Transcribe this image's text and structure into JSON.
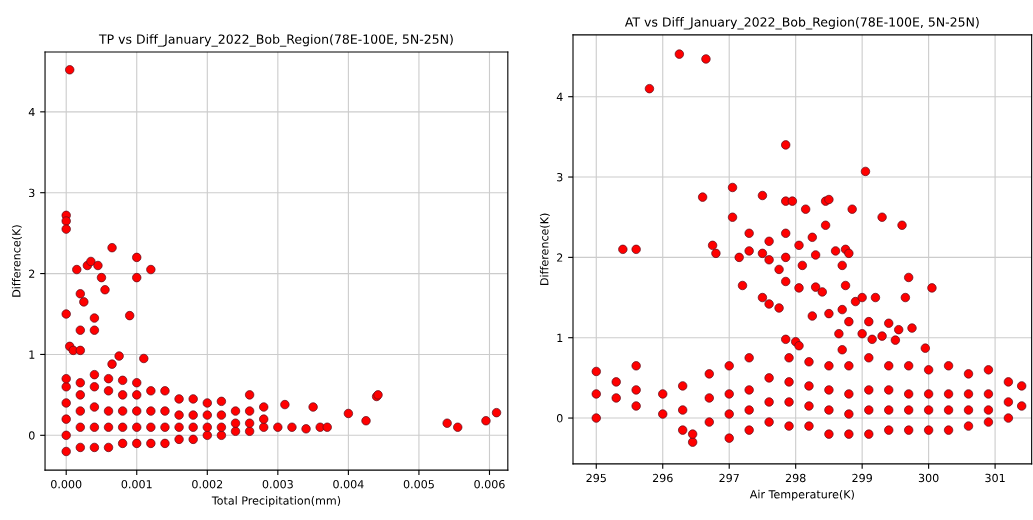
{
  "chart_data": [
    {
      "type": "scatter",
      "title": "TP vs Diff_January_2022_Bob_Region(78E-100E, 5N-25N)",
      "xlabel": "Total Precipitation(mm)",
      "ylabel": "Difference(K)",
      "grid": true,
      "marker": "circle",
      "xlim": [
        -0.0003,
        0.00626
      ],
      "ylim": [
        -0.43,
        4.74
      ],
      "xticks": [
        {
          "value": 0,
          "label": "0.000"
        },
        {
          "value": 0.001,
          "label": "0.001"
        },
        {
          "value": 0.002,
          "label": "0.002"
        },
        {
          "value": 0.003,
          "label": "0.003"
        },
        {
          "value": 0.004,
          "label": "0.004"
        },
        {
          "value": 0.005,
          "label": "0.005"
        },
        {
          "value": 0.006,
          "label": "0.006"
        }
      ],
      "yticks": [
        0,
        1,
        2,
        3,
        4
      ],
      "series": [
        {
          "color": "#ff0000",
          "x": [
            5e-05,
            0,
            0,
            0,
            0,
            5e-05,
            0.0001,
            0.00015,
            0.0002,
            0.0002,
            0.00025,
            0.0003,
            0.00035,
            0.0002,
            0.0004,
            0.0004,
            0.00045,
            0.0005,
            0.00055,
            0.00065,
            0.00065,
            0.00075,
            0.0009,
            0.001,
            0.001,
            0.0012,
            0.0011,
            0,
            0,
            0,
            0,
            0,
            0,
            0.0002,
            0.0002,
            0.0002,
            0.0002,
            0.0002,
            0.0004,
            0.0004,
            0.0004,
            0.0004,
            0.0004,
            0.0006,
            0.0006,
            0.0006,
            0.0006,
            0.0006,
            0.0008,
            0.0008,
            0.0008,
            0.0008,
            0.0008,
            0.001,
            0.001,
            0.001,
            0.001,
            0.001,
            0.0012,
            0.0012,
            0.0012,
            0.0012,
            0.0014,
            0.0014,
            0.0014,
            0.0014,
            0.0016,
            0.0016,
            0.0016,
            0.0016,
            0.0018,
            0.0018,
            0.0018,
            0.0018,
            0.002,
            0.002,
            0.002,
            0.002,
            0.0022,
            0.0022,
            0.0022,
            0.0022,
            0.0024,
            0.0024,
            0.0024,
            0.0026,
            0.0026,
            0.0026,
            0.0026,
            0.0028,
            0.0028,
            0.0028,
            0.003,
            0.0031,
            0.0032,
            0.0034,
            0.0035,
            0.0036,
            0.0037,
            0.004,
            0.00425,
            0.0044,
            0.00442,
            0.0054,
            0.00555,
            0.00595,
            0.0061
          ],
          "values": [
            4.52,
            2.72,
            2.65,
            2.55,
            1.5,
            1.1,
            1.05,
            2.05,
            1.05,
            1.3,
            1.65,
            2.1,
            2.15,
            1.75,
            1.45,
            1.3,
            2.1,
            1.95,
            1.8,
            2.32,
            0.88,
            0.98,
            1.48,
            2.2,
            1.95,
            2.05,
            0.95,
            -0.2,
            0,
            0.2,
            0.4,
            0.6,
            0.7,
            -0.15,
            0.1,
            0.3,
            0.5,
            0.65,
            -0.15,
            0.1,
            0.35,
            0.6,
            0.75,
            -0.15,
            0.1,
            0.3,
            0.55,
            0.7,
            -0.1,
            0.1,
            0.3,
            0.5,
            0.68,
            -0.1,
            0.1,
            0.3,
            0.5,
            0.65,
            -0.1,
            0.1,
            0.3,
            0.55,
            -0.1,
            0.1,
            0.3,
            0.55,
            -0.05,
            0.1,
            0.25,
            0.45,
            -0.05,
            0.1,
            0.25,
            0.45,
            0,
            0.1,
            0.25,
            0.4,
            0,
            0.1,
            0.25,
            0.42,
            0.05,
            0.15,
            0.3,
            0.05,
            0.15,
            0.3,
            0.5,
            0.1,
            0.2,
            0.35,
            0.1,
            0.38,
            0.1,
            0.08,
            0.35,
            0.1,
            0.1,
            0.27,
            0.18,
            0.48,
            0.5,
            0.15,
            0.1,
            0.18,
            0.28
          ]
        }
      ]
    },
    {
      "type": "scatter",
      "title": "AT vs Diff_January_2022_Bob_Region(78E-100E, 5N-25N)",
      "xlabel": "Air Temperature(K)",
      "ylabel": "Difference(K)",
      "grid": true,
      "marker": "circle",
      "xlim": [
        294.65,
        301.55
      ],
      "ylim": [
        -0.57,
        4.77
      ],
      "xticks": [
        295,
        296,
        297,
        298,
        299,
        300,
        301
      ],
      "yticks": [
        0,
        1,
        2,
        3,
        4
      ],
      "series": [
        {
          "color": "#ff0000",
          "x": [
            295.8,
            296.25,
            296.65,
            297.85,
            299.05,
            295.4,
            295.6,
            296.6,
            297.05,
            297.05,
            297.5,
            297.85,
            297.95,
            298.15,
            298.45,
            298.5,
            298.85,
            299.3,
            299.6,
            296.75,
            296.8,
            297.15,
            297.3,
            297.3,
            297.5,
            297.6,
            297.6,
            297.75,
            297.85,
            297.85,
            297.85,
            298.05,
            298.1,
            298.05,
            298.25,
            298.3,
            298.3,
            298.4,
            298.45,
            298.6,
            298.7,
            298.75,
            298.75,
            298.8,
            299.7,
            299.65,
            300.05,
            297.2,
            297.5,
            297.6,
            297.75,
            298.25,
            298.5,
            298.7,
            298.8,
            298.9,
            299.0,
            299.2,
            299.1,
            299.4,
            299.75,
            299.55,
            298.65,
            299.0,
            299.15,
            299.3,
            299.5,
            298.0,
            298.05,
            298.7,
            299.95,
            297.85,
            295.0,
            295.0,
            295.0,
            295.3,
            295.3,
            295.6,
            295.6,
            295.6,
            296.0,
            296.0,
            296.3,
            296.3,
            296.3,
            296.45,
            296.45,
            296.7,
            296.7,
            296.7,
            297.0,
            297.0,
            297.0,
            297.0,
            297.3,
            297.3,
            297.3,
            297.3,
            297.6,
            297.6,
            297.6,
            297.9,
            297.9,
            297.9,
            297.9,
            298.2,
            298.2,
            298.2,
            298.2,
            298.5,
            298.5,
            298.5,
            298.5,
            298.8,
            298.8,
            298.8,
            298.8,
            299.1,
            299.1,
            299.1,
            299.1,
            299.4,
            299.4,
            299.4,
            299.4,
            299.7,
            299.7,
            299.7,
            299.7,
            300.0,
            300.0,
            300.0,
            300.0,
            300.3,
            300.3,
            300.3,
            300.3,
            300.6,
            300.6,
            300.6,
            300.6,
            300.9,
            300.9,
            300.9,
            300.9,
            301.2,
            301.2,
            301.2,
            301.4,
            301.4
          ],
          "values": [
            4.1,
            4.53,
            4.47,
            3.4,
            3.07,
            2.1,
            2.1,
            2.75,
            2.87,
            2.5,
            2.77,
            2.7,
            2.7,
            2.6,
            2.7,
            2.72,
            2.6,
            2.5,
            2.4,
            2.15,
            2.05,
            2.0,
            2.3,
            2.08,
            2.05,
            2.2,
            1.97,
            1.85,
            2.3,
            2.0,
            1.7,
            2.15,
            1.9,
            1.62,
            2.25,
            2.03,
            1.63,
            1.57,
            2.4,
            2.08,
            1.9,
            2.1,
            1.65,
            2.05,
            1.75,
            1.5,
            1.62,
            1.65,
            1.5,
            1.42,
            1.37,
            1.27,
            1.3,
            1.35,
            1.2,
            1.45,
            1.5,
            1.5,
            1.2,
            1.18,
            1.12,
            1.1,
            1.05,
            1.05,
            0.98,
            1.02,
            0.97,
            0.95,
            0.9,
            0.85,
            0.87,
            0.98,
            0.0,
            0.3,
            0.58,
            0.25,
            0.45,
            0.15,
            0.35,
            0.65,
            0.05,
            0.3,
            -0.15,
            0.1,
            0.4,
            -0.3,
            -0.2,
            -0.05,
            0.25,
            0.55,
            -0.25,
            0.05,
            0.3,
            0.65,
            -0.15,
            0.1,
            0.35,
            0.75,
            -0.05,
            0.2,
            0.5,
            -0.1,
            0.2,
            0.45,
            0.75,
            -0.1,
            0.15,
            0.4,
            0.7,
            -0.2,
            0.1,
            0.35,
            0.65,
            -0.2,
            0.05,
            0.3,
            0.65,
            -0.2,
            0.1,
            0.35,
            0.75,
            -0.15,
            0.1,
            0.35,
            0.65,
            -0.15,
            0.1,
            0.3,
            0.65,
            -0.15,
            0.1,
            0.3,
            0.6,
            -0.15,
            0.1,
            0.3,
            0.65,
            -0.1,
            0.1,
            0.3,
            0.55,
            -0.05,
            0.1,
            0.3,
            0.6,
            0.0,
            0.2,
            0.45,
            0.15,
            0.4
          ]
        }
      ]
    }
  ]
}
